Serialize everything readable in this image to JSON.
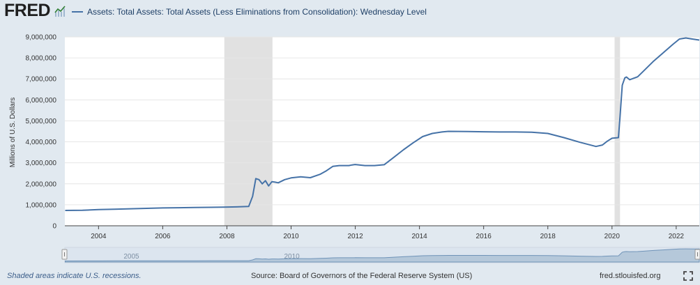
{
  "header": {
    "logo_text": "FRED",
    "logo_icon": "line-chart-icon",
    "legend_label": "Assets: Total Assets: Total Assets (Less Eliminations from Consolidation): Wednesday Level"
  },
  "footer": {
    "note": "Shaded areas indicate U.S. recessions.",
    "source": "Source: Board of Governors of the Federal Reserve System (US)",
    "site": "fred.stlouisfed.org",
    "fullscreen_icon": "fullscreen-icon"
  },
  "colors": {
    "series": "#4572a7",
    "recession": "#e1e1e1",
    "background": "#e1e9f0",
    "plot_background": "#ffffff"
  },
  "chart_data": {
    "type": "line",
    "title": "",
    "xlabel": "",
    "ylabel": "Millions of U.S. Dollars",
    "xlim": [
      2002.95,
      2022.72
    ],
    "ylim": [
      0,
      9000000
    ],
    "x_ticks": [
      2004,
      2006,
      2008,
      2010,
      2012,
      2014,
      2016,
      2018,
      2020,
      2022
    ],
    "y_ticks": [
      0,
      1000000,
      2000000,
      3000000,
      4000000,
      5000000,
      6000000,
      7000000,
      8000000,
      9000000
    ],
    "y_tick_labels": [
      "0",
      "1,000,000",
      "2,000,000",
      "3,000,000",
      "4,000,000",
      "5,000,000",
      "6,000,000",
      "7,000,000",
      "8,000,000",
      "9,000,000"
    ],
    "grid": true,
    "recessions": [
      [
        2007.92,
        2009.42
      ],
      [
        2020.08,
        2020.25
      ]
    ],
    "navigator_labels": [
      "2005",
      "2010"
    ],
    "series": [
      {
        "x": [
          2002.96,
          2003.5,
          2004.0,
          2004.5,
          2005.0,
          2005.5,
          2006.0,
          2006.5,
          2007.0,
          2007.5,
          2007.9,
          2008.3,
          2008.68,
          2008.8,
          2008.9,
          2009.0,
          2009.1,
          2009.2,
          2009.3,
          2009.4,
          2009.5,
          2009.6,
          2009.8,
          2010.0,
          2010.3,
          2010.6,
          2010.9,
          2011.1,
          2011.3,
          2011.5,
          2011.8,
          2011.9,
          2012.0,
          2012.3,
          2012.6,
          2012.9,
          2013.2,
          2013.5,
          2013.8,
          2014.1,
          2014.4,
          2014.7,
          2014.9,
          2015.5,
          2016.0,
          2016.5,
          2017.0,
          2017.5,
          2018.0,
          2018.5,
          2019.0,
          2019.5,
          2019.7,
          2019.85,
          2020.0,
          2020.2,
          2020.25,
          2020.32,
          2020.4,
          2020.45,
          2020.55,
          2020.8,
          2021.0,
          2021.3,
          2021.6,
          2021.9,
          2022.1,
          2022.3,
          2022.5,
          2022.72
        ],
        "y": [
          730000,
          740000,
          770000,
          790000,
          810000,
          830000,
          850000,
          860000,
          870000,
          880000,
          890000,
          900000,
          920000,
          1400000,
          2250000,
          2200000,
          2000000,
          2150000,
          1900000,
          2100000,
          2080000,
          2050000,
          2200000,
          2280000,
          2330000,
          2290000,
          2450000,
          2620000,
          2830000,
          2870000,
          2870000,
          2900000,
          2920000,
          2870000,
          2870000,
          2910000,
          3260000,
          3620000,
          3950000,
          4250000,
          4400000,
          4470000,
          4500000,
          4490000,
          4480000,
          4470000,
          4470000,
          4460000,
          4400000,
          4200000,
          3980000,
          3780000,
          3850000,
          4030000,
          4170000,
          4200000,
          5200000,
          6700000,
          7050000,
          7090000,
          6960000,
          7100000,
          7400000,
          7850000,
          8250000,
          8650000,
          8900000,
          8950000,
          8900000,
          8850000
        ]
      }
    ]
  }
}
